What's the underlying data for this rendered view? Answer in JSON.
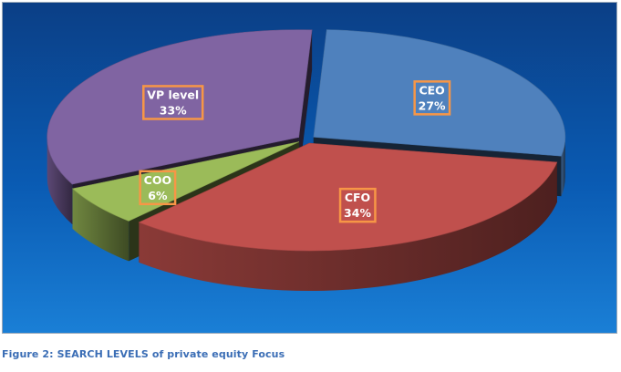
{
  "chart_data": {
    "type": "pie",
    "style": "3d-exploded",
    "slices": [
      {
        "label": "CEO",
        "value": 27,
        "value_label": "27%",
        "color": "#4f81bd"
      },
      {
        "label": "CFO",
        "value": 34,
        "value_label": "34%",
        "color": "#c0504d"
      },
      {
        "label": "COO",
        "value": 6,
        "value_label": "6%",
        "color": "#9bbb59"
      },
      {
        "label": "VP level",
        "value": 33,
        "value_label": "33%",
        "color": "#8064a2"
      }
    ],
    "label_border_color": "#f79646",
    "background_colors": [
      "#0b3f86",
      "#1a7fd6"
    ]
  },
  "caption": "Figure 2: SEARCH LEVELS of private equity Focus"
}
